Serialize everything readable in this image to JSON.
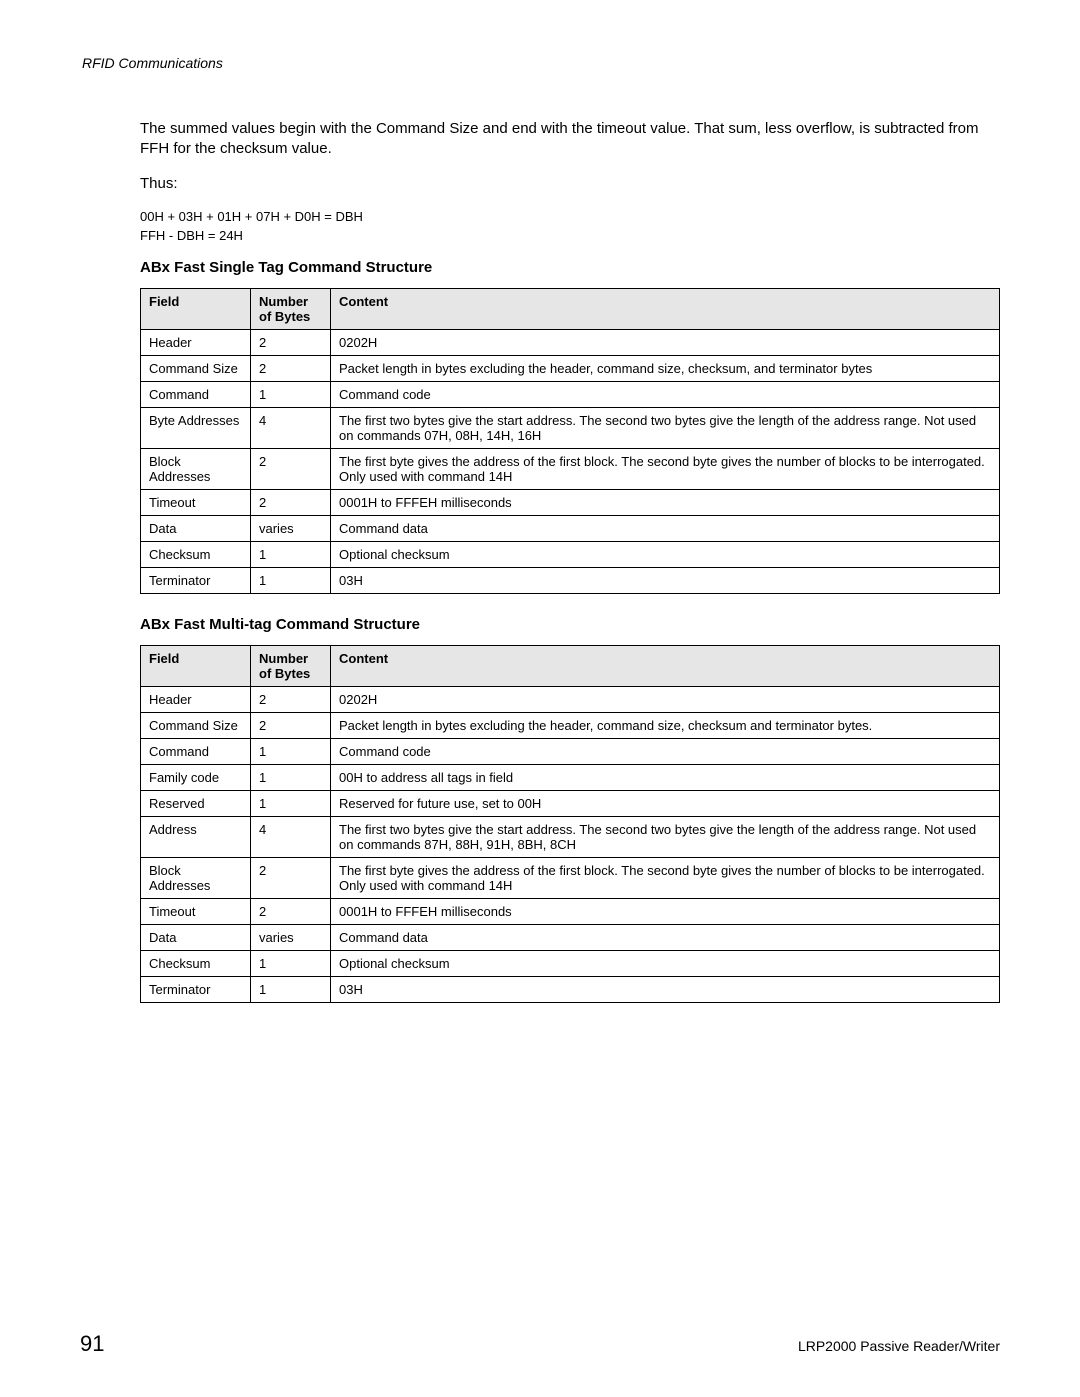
{
  "runningHead": "RFID Communications",
  "para1": "The summed values begin with the Command Size and end with the timeout value. That sum, less overflow, is subtracted from FFH for the checksum value.",
  "thus": "Thus:",
  "calc1": "00H + 03H + 01H + 07H + D0H = DBH",
  "calc2": "FFH - DBH = 24H",
  "heading1": "ABx Fast Single Tag Command Structure",
  "heading2": "ABx Fast Multi-tag Command Structure",
  "th_field": "Field",
  "th_bytes": "Number of Bytes",
  "th_content": "Content",
  "table1": {
    "rows": [
      {
        "field": "Header",
        "bytes": "2",
        "content": "0202H"
      },
      {
        "field": "Command Size",
        "bytes": "2",
        "content": "Packet length in bytes excluding the header, command size, checksum, and terminator bytes"
      },
      {
        "field": "Command",
        "bytes": "1",
        "content": "Command code"
      },
      {
        "field": "Byte Addresses",
        "bytes": "4",
        "content": "The first two bytes give the start address. The second two bytes give the length of the address range. Not used on commands 07H, 08H, 14H, 16H"
      },
      {
        "field": "Block Addresses",
        "bytes": "2",
        "content": "The first byte gives the address of the first block. The second byte gives the number of blocks to be interrogated. Only used with command 14H"
      },
      {
        "field": "Timeout",
        "bytes": "2",
        "content": "0001H to FFFEH milliseconds"
      },
      {
        "field": "Data",
        "bytes": "varies",
        "content": "Command data"
      },
      {
        "field": "Checksum",
        "bytes": "1",
        "content": "Optional checksum"
      },
      {
        "field": "Terminator",
        "bytes": "1",
        "content": "03H"
      }
    ]
  },
  "table2": {
    "rows": [
      {
        "field": "Header",
        "bytes": "2",
        "content": "0202H"
      },
      {
        "field": "Command Size",
        "bytes": "2",
        "content": "Packet length in bytes excluding the header, command size, checksum and terminator bytes."
      },
      {
        "field": "Command",
        "bytes": "1",
        "content": "Command code"
      },
      {
        "field": "Family code",
        "bytes": "1",
        "content": "00H to address all tags in field"
      },
      {
        "field": "Reserved",
        "bytes": "1",
        "content": "Reserved for future use, set to 00H"
      },
      {
        "field": "Address",
        "bytes": "4",
        "content": "The first two bytes give the start address. The second two bytes give the length of the address range. Not used on commands 87H, 88H, 91H, 8BH, 8CH"
      },
      {
        "field": "Block Addresses",
        "bytes": "2",
        "content": "The first byte gives the address of the first block. The second byte gives the number of blocks to be interrogated. Only used with command 14H"
      },
      {
        "field": "Timeout",
        "bytes": "2",
        "content": "0001H to FFFEH milliseconds"
      },
      {
        "field": "Data",
        "bytes": "varies",
        "content": "Command data"
      },
      {
        "field": "Checksum",
        "bytes": "1",
        "content": "Optional checksum"
      },
      {
        "field": "Terminator",
        "bytes": "1",
        "content": "03H"
      }
    ]
  },
  "pageNumber": "91",
  "footerRight": "LRP2000 Passive Reader/Writer"
}
